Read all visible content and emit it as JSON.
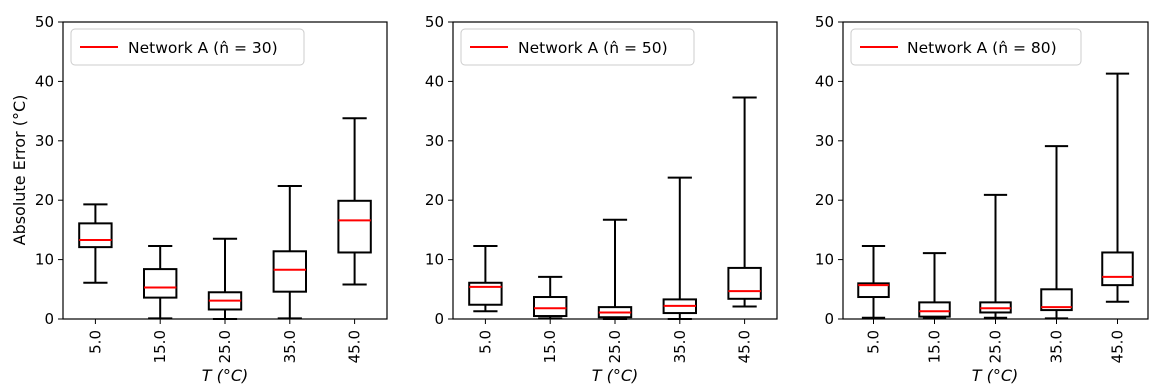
{
  "chart_data": [
    {
      "type": "box",
      "legend": "Network A (n̂ = 30)",
      "legend_position": "top-left",
      "ylabel": "Absolute Error (°C)",
      "xlabel": "T (°C)",
      "ylim": [
        0,
        50
      ],
      "yticks": [
        "0",
        "10",
        "20",
        "30",
        "40",
        "50"
      ],
      "categories": [
        "5.0",
        "15.0",
        "25.0",
        "35.0",
        "45.0"
      ],
      "boxes": [
        {
          "whislo": 6.1,
          "q1": 12.1,
          "med": 13.3,
          "q3": 16.1,
          "whishi": 19.3
        },
        {
          "whislo": 0.1,
          "q1": 3.6,
          "med": 5.3,
          "q3": 8.4,
          "whishi": 12.3
        },
        {
          "whislo": 0.0,
          "q1": 1.6,
          "med": 3.1,
          "q3": 4.5,
          "whishi": 13.5
        },
        {
          "whislo": 0.1,
          "q1": 4.6,
          "med": 8.3,
          "q3": 11.4,
          "whishi": 22.4
        },
        {
          "whislo": 5.8,
          "q1": 11.2,
          "med": 16.6,
          "q3": 19.9,
          "whishi": 33.8
        }
      ]
    },
    {
      "type": "box",
      "legend": "Network A (n̂ = 50)",
      "legend_position": "top-left",
      "ylabel": "",
      "xlabel": "T (°C)",
      "ylim": [
        0,
        50
      ],
      "yticks": [
        "0",
        "10",
        "20",
        "30",
        "40",
        "50"
      ],
      "categories": [
        "5.0",
        "15.0",
        "25.0",
        "35.0",
        "45.0"
      ],
      "boxes": [
        {
          "whislo": 1.3,
          "q1": 2.4,
          "med": 5.4,
          "q3": 6.1,
          "whishi": 12.3
        },
        {
          "whislo": 0.1,
          "q1": 0.5,
          "med": 1.8,
          "q3": 3.7,
          "whishi": 7.1
        },
        {
          "whislo": 0.0,
          "q1": 0.3,
          "med": 1.1,
          "q3": 2.0,
          "whishi": 16.7
        },
        {
          "whislo": 0.0,
          "q1": 1.0,
          "med": 2.2,
          "q3": 3.3,
          "whishi": 23.8
        },
        {
          "whislo": 2.1,
          "q1": 3.4,
          "med": 4.7,
          "q3": 8.6,
          "whishi": 37.3
        }
      ]
    },
    {
      "type": "box",
      "legend": "Network A (n̂ = 80)",
      "legend_position": "top-left",
      "ylabel": "",
      "xlabel": "T (°C)",
      "ylim": [
        0,
        50
      ],
      "yticks": [
        "0",
        "10",
        "20",
        "30",
        "40",
        "50"
      ],
      "categories": [
        "5.0",
        "15.0",
        "25.0",
        "35.0",
        "45.0"
      ],
      "boxes": [
        {
          "whislo": 0.2,
          "q1": 3.7,
          "med": 5.7,
          "q3": 6.0,
          "whishi": 12.3
        },
        {
          "whislo": 0.1,
          "q1": 0.4,
          "med": 1.3,
          "q3": 2.8,
          "whishi": 11.1
        },
        {
          "whislo": 0.2,
          "q1": 1.1,
          "med": 1.8,
          "q3": 2.8,
          "whishi": 20.9
        },
        {
          "whislo": 0.1,
          "q1": 1.5,
          "med": 2.0,
          "q3": 5.0,
          "whishi": 29.1
        },
        {
          "whislo": 2.9,
          "q1": 5.7,
          "med": 7.1,
          "q3": 11.2,
          "whishi": 41.3
        }
      ]
    }
  ],
  "colors": {
    "box": "#000000",
    "median": "#ff0000",
    "background": "#ffffff"
  }
}
